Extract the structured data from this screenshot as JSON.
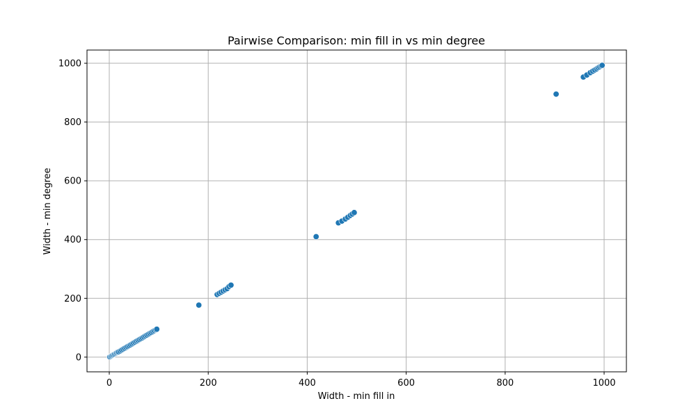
{
  "chart_data": {
    "type": "scatter",
    "title": "Pairwise Comparison: min fill in vs min degree",
    "xlabel": "Width - min fill in",
    "ylabel": "Width - min degree",
    "xlim": [
      -45,
      1045
    ],
    "ylim": [
      -50,
      1045
    ],
    "xticks": [
      0,
      200,
      400,
      600,
      800,
      1000
    ],
    "yticks": [
      0,
      200,
      400,
      600,
      800,
      1000
    ],
    "grid": true,
    "marker_color": "#1f77b4",
    "series": [
      {
        "points": [
          [
            1,
            1
          ],
          [
            3,
            3
          ],
          [
            5,
            5
          ],
          [
            7,
            7
          ],
          [
            9,
            9
          ],
          [
            11,
            11
          ],
          [
            13,
            13
          ],
          [
            15,
            15
          ],
          [
            17,
            17
          ],
          [
            19,
            18
          ],
          [
            22,
            21
          ],
          [
            25,
            24
          ],
          [
            28,
            27
          ],
          [
            31,
            30
          ],
          [
            34,
            33
          ],
          [
            37,
            36
          ],
          [
            40,
            39
          ],
          [
            43,
            42
          ],
          [
            46,
            45
          ],
          [
            49,
            48
          ],
          [
            52,
            51
          ],
          [
            55,
            54
          ],
          [
            58,
            57
          ],
          [
            61,
            60
          ],
          [
            64,
            63
          ],
          [
            67,
            66
          ],
          [
            70,
            69
          ],
          [
            73,
            72
          ],
          [
            76,
            75
          ],
          [
            79,
            78
          ],
          [
            82,
            81
          ],
          [
            85,
            84
          ],
          [
            88,
            87
          ],
          [
            91,
            90
          ],
          [
            94,
            93
          ],
          [
            96,
            95
          ],
          [
            181,
            177
          ],
          [
            218,
            213
          ],
          [
            222,
            217
          ],
          [
            226,
            221
          ],
          [
            230,
            225
          ],
          [
            234,
            229
          ],
          [
            238,
            233
          ],
          [
            242,
            240
          ],
          [
            246,
            245
          ],
          [
            418,
            410
          ],
          [
            463,
            457
          ],
          [
            470,
            463
          ],
          [
            477,
            470
          ],
          [
            482,
            476
          ],
          [
            487,
            482
          ],
          [
            491,
            487
          ],
          [
            495,
            492
          ],
          [
            903,
            895
          ],
          [
            958,
            953
          ],
          [
            965,
            960
          ],
          [
            972,
            968
          ],
          [
            977,
            973
          ],
          [
            981,
            977
          ],
          [
            985,
            981
          ],
          [
            988,
            985
          ],
          [
            991,
            988
          ],
          [
            994,
            991
          ],
          [
            996,
            993
          ]
        ]
      }
    ]
  }
}
